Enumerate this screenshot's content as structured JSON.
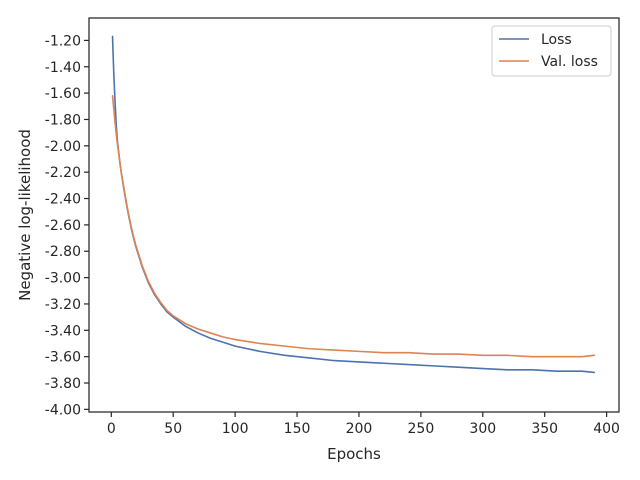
{
  "chart_data": {
    "type": "line",
    "title": "",
    "xlabel": "Epochs",
    "ylabel": "Negative log-likelihood",
    "xlim": [
      -18,
      410
    ],
    "ylim": [
      -4.02,
      -1.03
    ],
    "grid": false,
    "legend_position": "top-right",
    "x_ticks": [
      {
        "value": 0,
        "label": "0"
      },
      {
        "value": 50,
        "label": "50"
      },
      {
        "value": 100,
        "label": "100"
      },
      {
        "value": 150,
        "label": "150"
      },
      {
        "value": 200,
        "label": "200"
      },
      {
        "value": 250,
        "label": "250"
      },
      {
        "value": 300,
        "label": "300"
      },
      {
        "value": 350,
        "label": "350"
      },
      {
        "value": 400,
        "label": "400"
      }
    ],
    "y_ticks": [
      {
        "value": -1.2,
        "label": "-1.20"
      },
      {
        "value": -1.4,
        "label": "-1.40"
      },
      {
        "value": -1.6,
        "label": "-1.60"
      },
      {
        "value": -1.8,
        "label": "-1.80"
      },
      {
        "value": -2.0,
        "label": "-2.00"
      },
      {
        "value": -2.2,
        "label": "-2.20"
      },
      {
        "value": -2.4,
        "label": "-2.40"
      },
      {
        "value": -2.6,
        "label": "-2.60"
      },
      {
        "value": -2.8,
        "label": "-2.80"
      },
      {
        "value": -3.0,
        "label": "-3.00"
      },
      {
        "value": -3.2,
        "label": "-3.20"
      },
      {
        "value": -3.4,
        "label": "-3.40"
      },
      {
        "value": -3.6,
        "label": "-3.60"
      },
      {
        "value": -3.8,
        "label": "-3.80"
      },
      {
        "value": -4.0,
        "label": "-4.00"
      }
    ],
    "series": [
      {
        "name": "Loss",
        "color": "#4c72b0",
        "x": [
          1,
          2,
          3,
          4,
          5,
          6,
          7,
          8,
          10,
          12,
          14,
          16,
          18,
          20,
          25,
          30,
          35,
          40,
          45,
          50,
          60,
          70,
          80,
          90,
          100,
          120,
          140,
          160,
          180,
          200,
          220,
          240,
          260,
          280,
          300,
          320,
          340,
          360,
          380,
          390
        ],
        "y": [
          -1.17,
          -1.45,
          -1.66,
          -1.84,
          -1.97,
          -2.05,
          -2.13,
          -2.2,
          -2.32,
          -2.43,
          -2.53,
          -2.62,
          -2.7,
          -2.77,
          -2.92,
          -3.04,
          -3.13,
          -3.2,
          -3.26,
          -3.3,
          -3.37,
          -3.42,
          -3.46,
          -3.49,
          -3.52,
          -3.56,
          -3.59,
          -3.61,
          -3.63,
          -3.64,
          -3.65,
          -3.66,
          -3.67,
          -3.68,
          -3.69,
          -3.7,
          -3.7,
          -3.71,
          -3.71,
          -3.72
        ]
      },
      {
        "name": "Val. loss",
        "color": "#dd8452",
        "x": [
          1,
          2,
          3,
          4,
          5,
          6,
          7,
          8,
          10,
          12,
          14,
          16,
          18,
          20,
          25,
          30,
          35,
          40,
          45,
          50,
          60,
          70,
          80,
          90,
          100,
          120,
          140,
          160,
          180,
          200,
          220,
          240,
          260,
          280,
          300,
          320,
          340,
          360,
          380,
          390
        ],
        "y": [
          -1.62,
          -1.72,
          -1.82,
          -1.91,
          -1.99,
          -2.06,
          -2.13,
          -2.2,
          -2.31,
          -2.42,
          -2.52,
          -2.61,
          -2.69,
          -2.76,
          -2.91,
          -3.03,
          -3.12,
          -3.19,
          -3.25,
          -3.29,
          -3.35,
          -3.39,
          -3.42,
          -3.45,
          -3.47,
          -3.5,
          -3.52,
          -3.54,
          -3.55,
          -3.56,
          -3.57,
          -3.57,
          -3.58,
          -3.58,
          -3.59,
          -3.59,
          -3.6,
          -3.6,
          -3.6,
          -3.59
        ]
      }
    ]
  }
}
